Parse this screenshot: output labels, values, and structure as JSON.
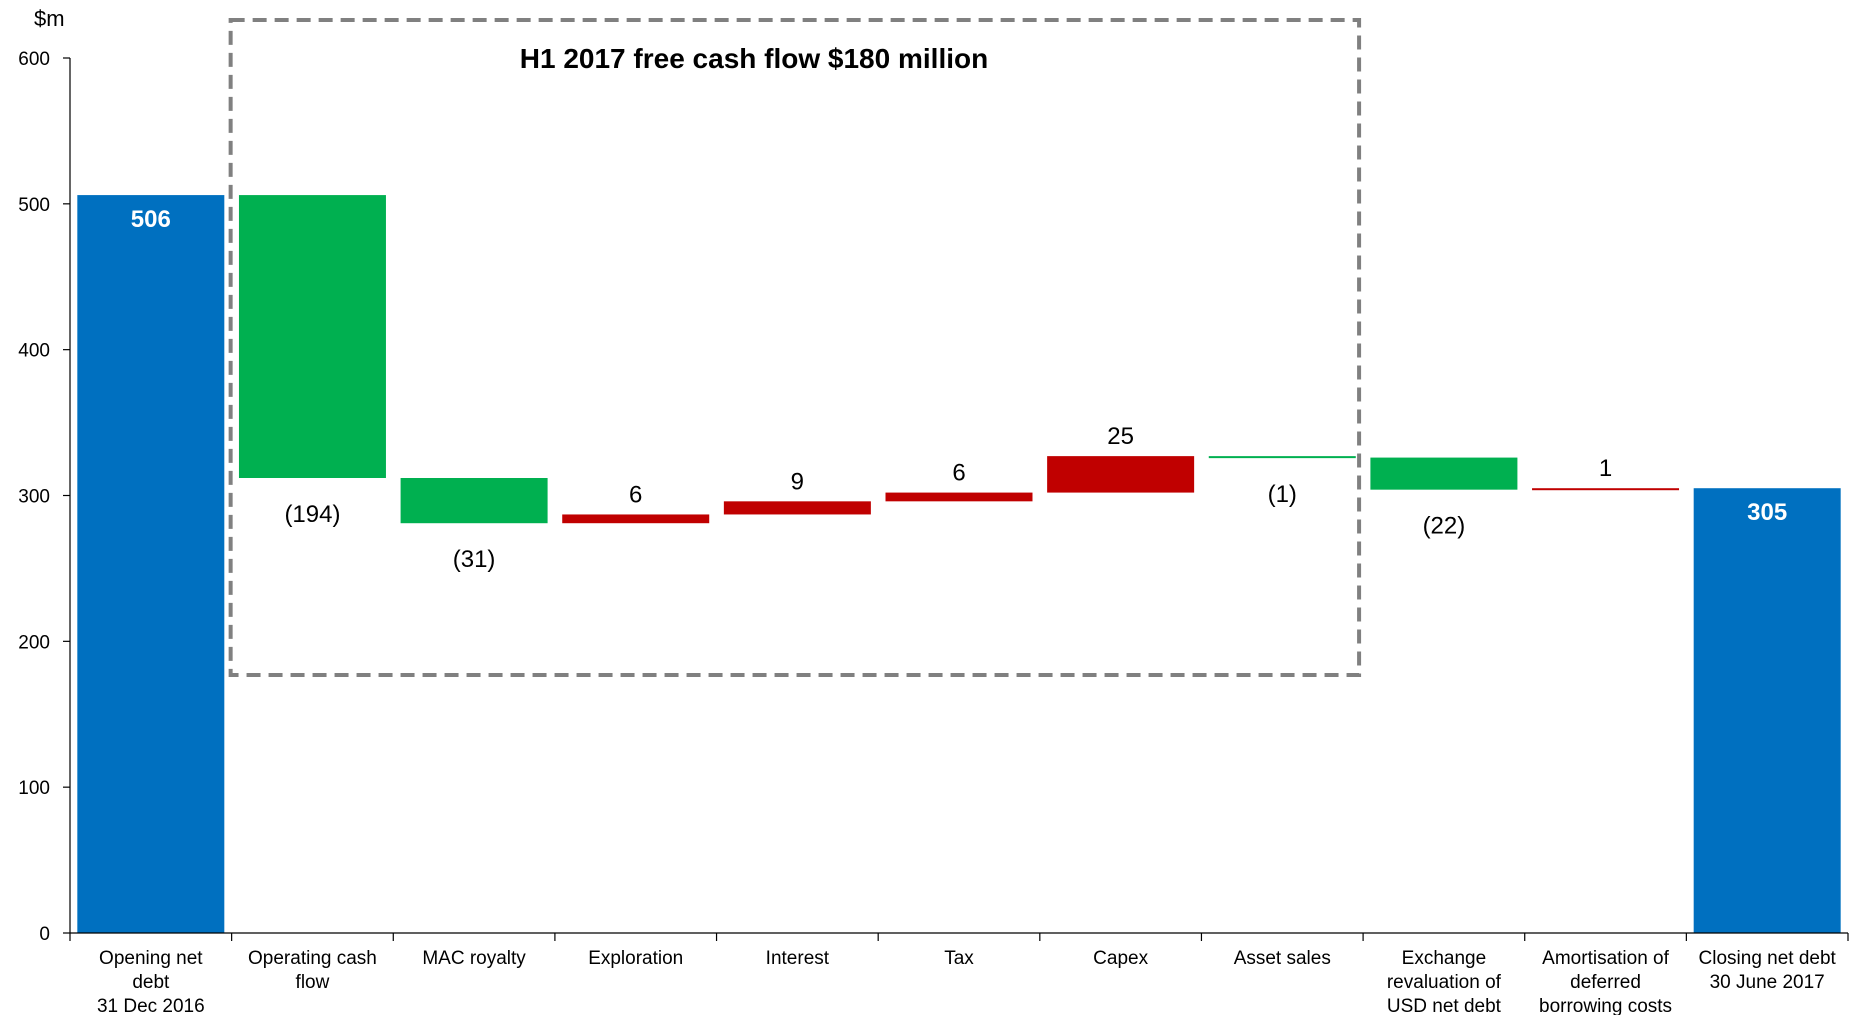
{
  "chart_data": {
    "type": "bar",
    "subtype": "waterfall",
    "ylabel": "$m",
    "ylim": [
      0,
      600
    ],
    "yticks": [
      0,
      100,
      200,
      300,
      400,
      500,
      600
    ],
    "grid": false,
    "annotation": {
      "text": "H1 2017 free cash flow $180 million",
      "style": "dashed-box",
      "spans_categories": [
        1,
        7
      ]
    },
    "colors": {
      "total": "#0070C0",
      "decrease": "#00B050",
      "increase": "#C00000",
      "box": "#808080"
    },
    "bars": [
      {
        "category": [
          "Opening net",
          "debt",
          "31 Dec 2016"
        ],
        "kind": "total",
        "start": 0,
        "end": 506,
        "label": "506"
      },
      {
        "category": [
          "Operating cash",
          "flow"
        ],
        "kind": "decrease",
        "start": 506,
        "end": 312,
        "label": "(194)"
      },
      {
        "category": [
          "MAC royalty"
        ],
        "kind": "decrease",
        "start": 312,
        "end": 281,
        "label": "(31)"
      },
      {
        "category": [
          "Exploration"
        ],
        "kind": "increase",
        "start": 281,
        "end": 287,
        "label": "6"
      },
      {
        "category": [
          "Interest"
        ],
        "kind": "increase",
        "start": 287,
        "end": 296,
        "label": "9"
      },
      {
        "category": [
          "Tax"
        ],
        "kind": "increase",
        "start": 296,
        "end": 302,
        "label": "6"
      },
      {
        "category": [
          "Capex"
        ],
        "kind": "increase",
        "start": 302,
        "end": 327,
        "label": "25"
      },
      {
        "category": [
          "Asset sales"
        ],
        "kind": "decrease",
        "start": 327,
        "end": 326,
        "label": "(1)"
      },
      {
        "category": [
          "Exchange",
          "revaluation of",
          "USD net debt"
        ],
        "kind": "decrease",
        "start": 326,
        "end": 304,
        "label": "(22)"
      },
      {
        "category": [
          "Amortisation of",
          "deferred",
          "borrowing costs"
        ],
        "kind": "increase",
        "start": 304,
        "end": 305,
        "label": "1"
      },
      {
        "category": [
          "Closing net debt",
          "30 June 2017"
        ],
        "kind": "total",
        "start": 0,
        "end": 305,
        "label": "305"
      }
    ]
  }
}
